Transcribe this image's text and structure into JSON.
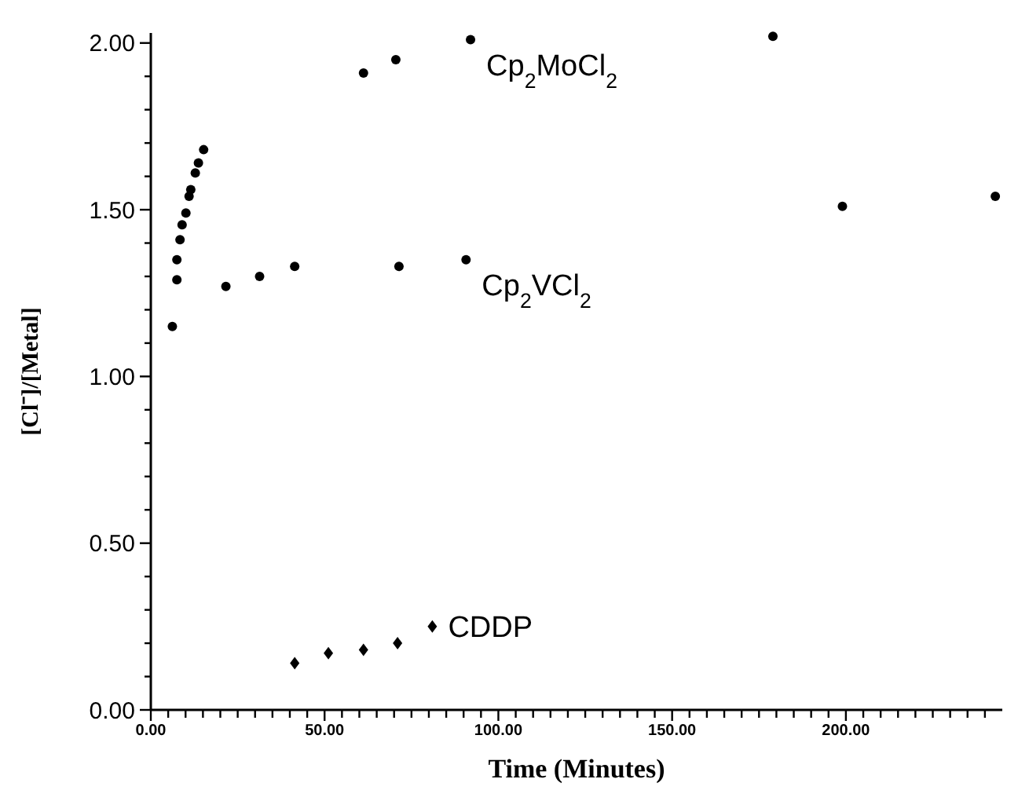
{
  "chart_data": {
    "type": "scatter",
    "xlabel": "Time (Minutes)",
    "ylabel": "[Cl⁻]/[Metal]",
    "xlim": [
      0,
      245
    ],
    "ylim": [
      0,
      2.03
    ],
    "xticks": [
      {
        "value": 0,
        "label": "0.00"
      },
      {
        "value": 5,
        "label": null
      },
      {
        "value": 10,
        "label": null
      },
      {
        "value": 15,
        "label": null
      },
      {
        "value": 20,
        "label": null
      },
      {
        "value": 25,
        "label": null
      },
      {
        "value": 30,
        "label": null
      },
      {
        "value": 35,
        "label": null
      },
      {
        "value": 40,
        "label": null
      },
      {
        "value": 45,
        "label": null
      },
      {
        "value": 50,
        "label": "50.00"
      },
      {
        "value": 55,
        "label": null
      },
      {
        "value": 60,
        "label": null
      },
      {
        "value": 65,
        "label": null
      },
      {
        "value": 70,
        "label": null
      },
      {
        "value": 75,
        "label": null
      },
      {
        "value": 80,
        "label": null
      },
      {
        "value": 85,
        "label": null
      },
      {
        "value": 90,
        "label": null
      },
      {
        "value": 95,
        "label": null
      },
      {
        "value": 100,
        "label": "100.00"
      },
      {
        "value": 105,
        "label": null
      },
      {
        "value": 110,
        "label": null
      },
      {
        "value": 115,
        "label": null
      },
      {
        "value": 120,
        "label": null
      },
      {
        "value": 125,
        "label": null
      },
      {
        "value": 130,
        "label": null
      },
      {
        "value": 135,
        "label": null
      },
      {
        "value": 140,
        "label": null
      },
      {
        "value": 145,
        "label": null
      },
      {
        "value": 150,
        "label": "150.00"
      },
      {
        "value": 155,
        "label": null
      },
      {
        "value": 160,
        "label": null
      },
      {
        "value": 165,
        "label": null
      },
      {
        "value": 170,
        "label": null
      },
      {
        "value": 175,
        "label": null
      },
      {
        "value": 180,
        "label": null
      },
      {
        "value": 185,
        "label": null
      },
      {
        "value": 190,
        "label": null
      },
      {
        "value": 195,
        "label": null
      },
      {
        "value": 200,
        "label": "200.00"
      },
      {
        "value": 205,
        "label": null
      },
      {
        "value": 210,
        "label": null
      },
      {
        "value": 215,
        "label": null
      },
      {
        "value": 220,
        "label": null
      },
      {
        "value": 225,
        "label": null
      },
      {
        "value": 230,
        "label": null
      },
      {
        "value": 235,
        "label": null
      },
      {
        "value": 240,
        "label": null
      }
    ],
    "yticks": [
      {
        "value": 0,
        "label": "0.00"
      },
      {
        "value": 0.1,
        "label": null
      },
      {
        "value": 0.2,
        "label": null
      },
      {
        "value": 0.3,
        "label": null
      },
      {
        "value": 0.4,
        "label": null
      },
      {
        "value": 0.5,
        "label": "0.50"
      },
      {
        "value": 0.6,
        "label": null
      },
      {
        "value": 0.7,
        "label": null
      },
      {
        "value": 0.8,
        "label": null
      },
      {
        "value": 0.9,
        "label": null
      },
      {
        "value": 1,
        "label": "1.00"
      },
      {
        "value": 1.1,
        "label": null
      },
      {
        "value": 1.2,
        "label": null
      },
      {
        "value": 1.3,
        "label": null
      },
      {
        "value": 1.4,
        "label": null
      },
      {
        "value": 1.5,
        "label": "1.50"
      },
      {
        "value": 1.6,
        "label": null
      },
      {
        "value": 1.7,
        "label": null
      },
      {
        "value": 1.8,
        "label": null
      },
      {
        "value": 1.9,
        "label": null
      },
      {
        "value": 2,
        "label": "2.00"
      }
    ],
    "series": [
      {
        "name": "Cp$_{2}$MoCl$_{2}$",
        "color": "#000000",
        "marker": "circle",
        "x": [
          6.2,
          7.5,
          7.5,
          8.4,
          9,
          10.1,
          11,
          11.5,
          12.8,
          13.7,
          15.2,
          61.2,
          70.5,
          92,
          179
        ],
        "values": [
          1.15,
          1.29,
          1.35,
          1.41,
          1.455,
          1.49,
          1.54,
          1.56,
          1.61,
          1.64,
          1.68,
          1.91,
          1.95,
          2.01,
          2.02
        ]
      },
      {
        "name": "Cp$_{2}$VCl$_{2}$",
        "color": "#000000",
        "marker": "circle",
        "x": [
          21.6,
          31.3,
          41.4,
          71.4,
          90.7,
          199,
          243
        ],
        "values": [
          1.27,
          1.3,
          1.33,
          1.33,
          1.35,
          1.51,
          1.54
        ]
      },
      {
        "name": "CDDP",
        "color": "#000000",
        "marker": "diamond",
        "x": [
          41.4,
          51.1,
          61.2,
          71,
          81
        ],
        "values": [
          0.14,
          0.17,
          0.18,
          0.2,
          0.25
        ]
      }
    ],
    "grid": false
  }
}
